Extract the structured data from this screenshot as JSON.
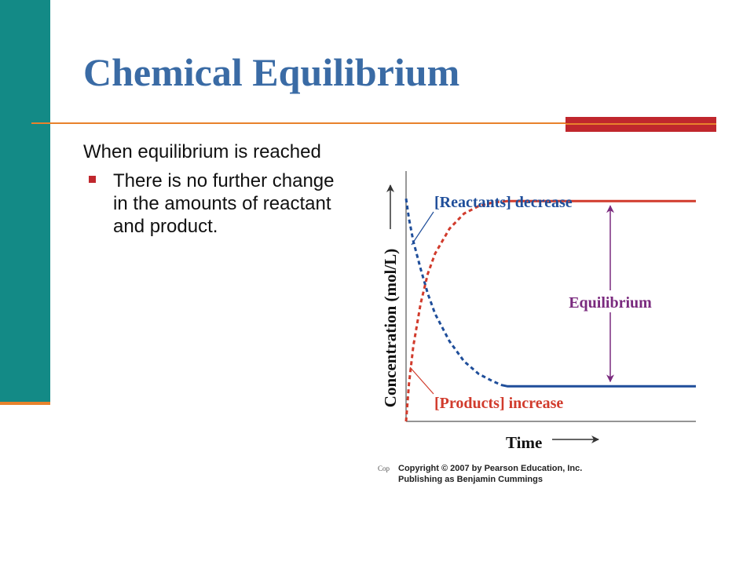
{
  "slide": {
    "title": "Chemical Equilibrium",
    "intro": "When equilibrium is reached",
    "bullets": [
      "There is no further change in the amounts of reactant and product."
    ],
    "copyright": {
      "cop": "Cop",
      "line1": "Copyright © 2007 by Pearson Education, Inc.",
      "line2": "Publishing as Benjamin Cummings"
    }
  },
  "colors": {
    "teal": "#138a86",
    "orange": "#e8822c",
    "red_accent": "#c0272d",
    "title_blue": "#3a6ba5",
    "reactant_blue": "#1f4e9a",
    "product_red": "#d13b2c",
    "equilibrium_purple": "#7a2a7e"
  },
  "chart_data": {
    "type": "line",
    "title": "",
    "xlabel": "Time",
    "ylabel": "Concentration (mol/L)",
    "series": [
      {
        "name": "[Reactants] decrease",
        "color": "#1f4e9a"
      },
      {
        "name": "[Products] increase",
        "color": "#d13b2c"
      }
    ],
    "annotation": "Equilibrium",
    "xlim": [
      0,
      10
    ],
    "ylim": [
      0,
      10
    ],
    "reactants": {
      "x": [
        0,
        0.1,
        0.25,
        0.5,
        0.75,
        1.0,
        1.5,
        2.0,
        2.5,
        3.0,
        3.3,
        3.5,
        4.0,
        5.0,
        6.0,
        7.0,
        8.0,
        9.0,
        10.0
      ],
      "y": [
        8.9,
        8.1,
        7.2,
        6.1,
        5.1,
        4.3,
        3.2,
        2.4,
        1.9,
        1.6,
        1.45,
        1.4,
        1.4,
        1.4,
        1.4,
        1.4,
        1.4,
        1.4,
        1.4
      ]
    },
    "products": {
      "x": [
        0,
        0.1,
        0.25,
        0.5,
        0.75,
        1.0,
        1.5,
        2.0,
        2.5,
        3.0,
        3.5,
        4.0,
        5.0,
        6.0,
        7.0,
        8.0,
        9.0,
        10.0
      ],
      "y": [
        0,
        1.5,
        3.0,
        4.7,
        5.9,
        6.7,
        7.7,
        8.3,
        8.6,
        8.75,
        8.8,
        8.8,
        8.8,
        8.8,
        8.8,
        8.8,
        8.8,
        8.8
      ]
    }
  }
}
